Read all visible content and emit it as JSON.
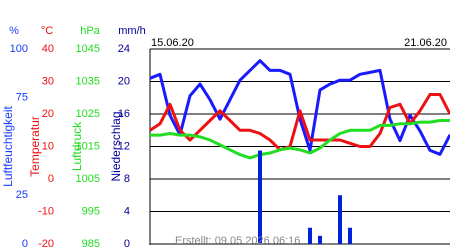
{
  "chart_data": {
    "type": "line",
    "x_labels": [
      "15.06.20",
      "21.06.20"
    ],
    "footer": "Erstellt: 09.05.2026 06:16",
    "axes": [
      {
        "unit": "%",
        "label": "Luftfeuchtigkeit",
        "color": "#1a3cff",
        "lim": [
          0,
          100
        ],
        "ticks": [
          0,
          25,
          75,
          100
        ]
      },
      {
        "unit": "°C",
        "label": "Temperatur",
        "color": "#ee1111",
        "lim": [
          -20,
          40
        ],
        "ticks": [
          -20,
          -10,
          0,
          10,
          20,
          30,
          40
        ]
      },
      {
        "unit": "hPa",
        "label": "Luftdruck",
        "color": "#22dd22",
        "lim": [
          985,
          1045
        ],
        "ticks": [
          985,
          995,
          1005,
          1015,
          1025,
          1035,
          1045
        ]
      },
      {
        "unit": "mm/h",
        "label": "Niederschlag",
        "color": "#000099",
        "lim": [
          0,
          24
        ],
        "ticks": [
          0,
          4,
          8,
          12,
          16,
          20,
          24
        ]
      }
    ],
    "grid": true,
    "series": [
      {
        "axis": 0,
        "kind": "line",
        "color": "#1a1aff",
        "values": [
          85,
          87,
          66,
          56,
          76,
          82,
          74,
          64,
          74,
          84,
          89,
          94,
          89,
          89,
          87,
          64,
          48,
          79,
          82,
          84,
          84,
          87,
          88,
          89,
          64,
          53,
          66,
          58,
          48,
          46,
          56
        ]
      },
      {
        "axis": 1,
        "kind": "line",
        "color": "#ee1111",
        "values": [
          15,
          17,
          23,
          15,
          12,
          15,
          18,
          21,
          18,
          15,
          15,
          14,
          12,
          9,
          10,
          21,
          12,
          12,
          12,
          12,
          11,
          10,
          10,
          14,
          22,
          23,
          17,
          21,
          26,
          26,
          20
        ]
      },
      {
        "axis": 2,
        "kind": "line",
        "color": "#22dd22",
        "values": [
          1018.5,
          1018.5,
          1019,
          1018.5,
          1018.5,
          1018,
          1017,
          1015.5,
          1014,
          1012.5,
          1011.5,
          1012.5,
          1013,
          1014,
          1014.5,
          1014,
          1013,
          1014.5,
          1017,
          1019,
          1020,
          1020,
          1020,
          1021.5,
          1021.5,
          1022,
          1022,
          1022.5,
          1022.5,
          1023,
          1023
        ]
      },
      {
        "axis": 3,
        "kind": "bar",
        "color": "#0022dd",
        "values": [
          0,
          0,
          0,
          0,
          0,
          0,
          0,
          0,
          0,
          0,
          0,
          11.5,
          0,
          0,
          0,
          0,
          2,
          1,
          0,
          6,
          2,
          0,
          0,
          0,
          0,
          0,
          0,
          0,
          0,
          0,
          0
        ]
      }
    ]
  }
}
